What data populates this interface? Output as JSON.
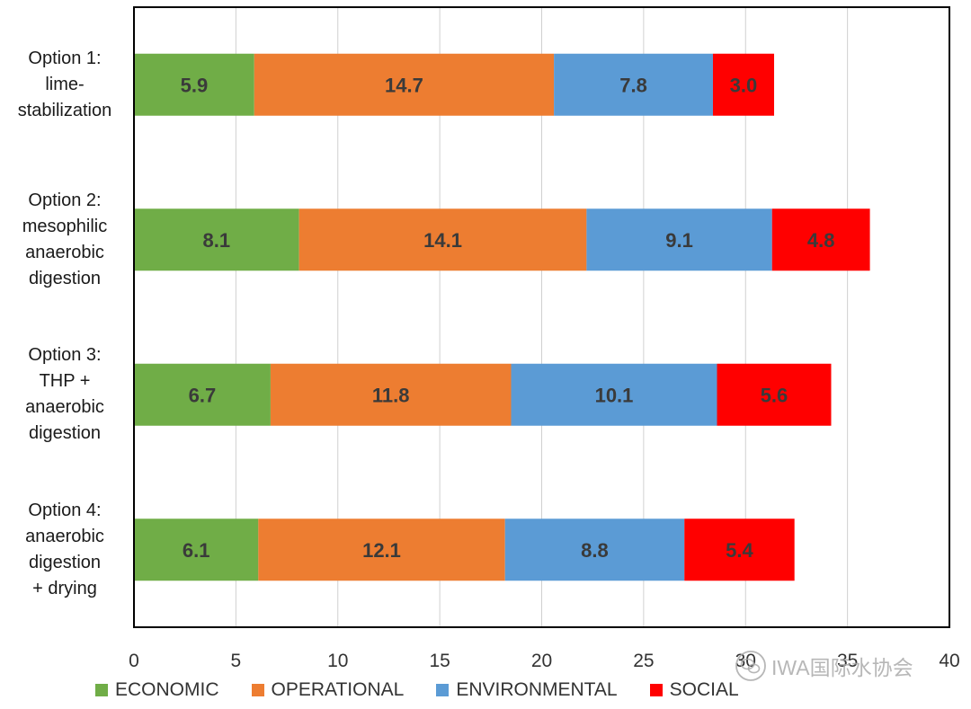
{
  "chart_data": {
    "type": "bar",
    "orientation": "horizontal",
    "stacked": true,
    "title": "",
    "xlabel": "",
    "ylabel": "",
    "xlim": [
      0,
      40
    ],
    "x_ticks": [
      0,
      5,
      10,
      15,
      20,
      25,
      30,
      35,
      40
    ],
    "x_tick_labels": [
      "0",
      "5",
      "10",
      "15",
      "20",
      "25",
      "30",
      "35",
      "40"
    ],
    "grid": true,
    "legend_position": "bottom",
    "categories": [
      [
        "Option 1:",
        "lime-",
        "stabilization"
      ],
      [
        "Option 2:",
        "mesophilic",
        "anaerobic",
        "digestion"
      ],
      [
        "Option 3:",
        "THP +",
        "anaerobic",
        "digestion"
      ],
      [
        "Option 4:",
        "anaerobic",
        "digestion",
        "+ drying"
      ]
    ],
    "series": [
      {
        "name": "ECONOMIC",
        "color": "#70ad47",
        "values": [
          5.9,
          8.1,
          6.7,
          6.1
        ],
        "labels": [
          "5.9",
          "8.1",
          "6.7",
          "6.1"
        ]
      },
      {
        "name": "OPERATIONAL",
        "color": "#ed7d31",
        "values": [
          14.7,
          14.1,
          11.8,
          12.1
        ],
        "labels": [
          "14.7",
          "14.1",
          "11.8",
          "12.1"
        ]
      },
      {
        "name": "ENVIRONMENTAL",
        "color": "#5b9bd5",
        "values": [
          7.8,
          9.1,
          10.1,
          8.8
        ],
        "labels": [
          "7.8",
          "9.1",
          "10.1",
          "8.8"
        ]
      },
      {
        "name": "SOCIAL",
        "color": "#ff0000",
        "values": [
          3.0,
          4.8,
          5.6,
          5.4
        ],
        "labels": [
          "3.0",
          "4.8",
          "5.6",
          "5.4"
        ]
      }
    ]
  },
  "watermark": {
    "text": "IWA国际水协会",
    "icon": "wechat-icon"
  }
}
